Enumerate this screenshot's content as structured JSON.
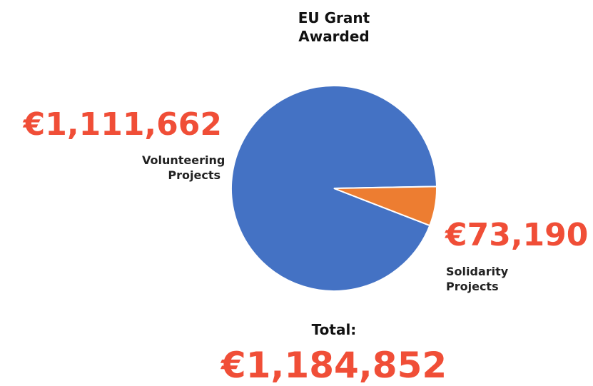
{
  "chart_data": {
    "type": "pie",
    "title": "EU Grant Awarded",
    "categories": [
      "Volunteering Projects",
      "Solidarity Projects"
    ],
    "values": [
      1111662,
      73190
    ],
    "value_labels": [
      "€1,111,662",
      "€73,190"
    ],
    "colors": [
      "#4472c4",
      "#ed7d31"
    ],
    "total": {
      "label": "Total:",
      "value": 1184852,
      "value_label": "€1,184,852"
    }
  }
}
